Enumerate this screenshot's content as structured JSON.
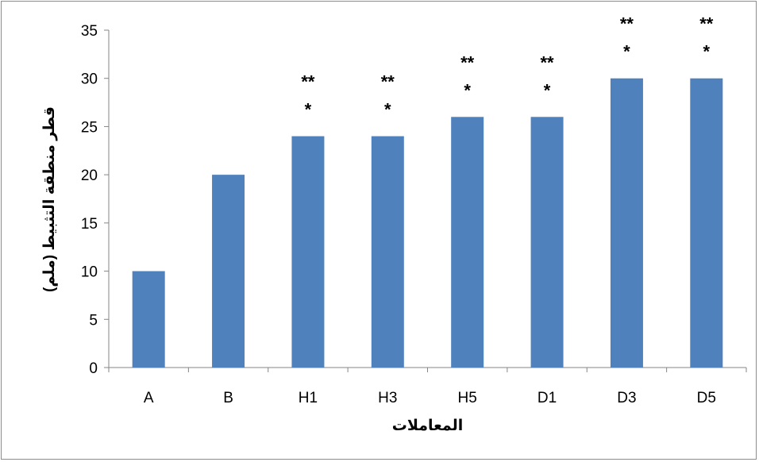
{
  "chart_data": {
    "type": "bar",
    "categories": [
      "A",
      "B",
      "H1",
      "H3",
      "H5",
      "D1",
      "D3",
      "D5"
    ],
    "values": [
      10,
      20,
      24,
      24,
      26,
      26,
      30,
      30
    ],
    "significance": [
      "",
      "",
      "**\n*",
      "**\n*",
      "**\n*",
      "**\n*",
      "**\n*",
      "**\n*"
    ],
    "title": "",
    "xlabel": "المعاملات",
    "ylabel": "قطر منطقة التثبيط (ملم)",
    "ylim": [
      0,
      35
    ],
    "yticks": [
      0,
      5,
      10,
      15,
      20,
      25,
      30,
      35
    ],
    "grid": false,
    "legend": "none",
    "bar_color": "#4f81bd",
    "axis_color": "#868686"
  }
}
